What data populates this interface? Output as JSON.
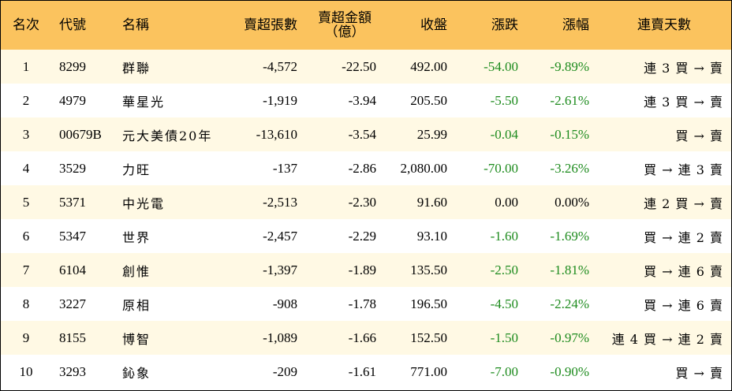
{
  "colors": {
    "header_bg": "#fbc35e",
    "row_alt_bg": "#fff9e4",
    "negative": "#1f8c1f"
  },
  "header": {
    "rank": "名次",
    "code": "代號",
    "name": "名稱",
    "sell_lots": "賣超張數",
    "sell_amount_line1": "賣超金額",
    "sell_amount_line2": "（億）",
    "close": "收盤",
    "change": "漲跌",
    "change_pct": "漲幅",
    "streak": "連賣天數"
  },
  "rows": [
    {
      "rank": "1",
      "code": "8299",
      "name": "群聯",
      "sell_lots": "-4,572",
      "sell_amount": "-22.50",
      "close": "492.00",
      "change": "-54.00",
      "change_pct": "-9.89%",
      "streak": "連 3 買 → 賣"
    },
    {
      "rank": "2",
      "code": "4979",
      "name": "華星光",
      "sell_lots": "-1,919",
      "sell_amount": "-3.94",
      "close": "205.50",
      "change": "-5.50",
      "change_pct": "-2.61%",
      "streak": "連 3 買 → 賣"
    },
    {
      "rank": "3",
      "code": "00679B",
      "name": "元大美債20年",
      "sell_lots": "-13,610",
      "sell_amount": "-3.54",
      "close": "25.99",
      "change": "-0.04",
      "change_pct": "-0.15%",
      "streak": "買 → 賣"
    },
    {
      "rank": "4",
      "code": "3529",
      "name": "力旺",
      "sell_lots": "-137",
      "sell_amount": "-2.86",
      "close": "2,080.00",
      "change": "-70.00",
      "change_pct": "-3.26%",
      "streak": "買 → 連 3 賣"
    },
    {
      "rank": "5",
      "code": "5371",
      "name": "中光電",
      "sell_lots": "-2,513",
      "sell_amount": "-2.30",
      "close": "91.60",
      "change": "0.00",
      "change_pct": "0.00%",
      "streak": "連 2 買 → 賣"
    },
    {
      "rank": "6",
      "code": "5347",
      "name": "世界",
      "sell_lots": "-2,457",
      "sell_amount": "-2.29",
      "close": "93.10",
      "change": "-1.60",
      "change_pct": "-1.69%",
      "streak": "買 → 連 2 賣"
    },
    {
      "rank": "7",
      "code": "6104",
      "name": "創惟",
      "sell_lots": "-1,397",
      "sell_amount": "-1.89",
      "close": "135.50",
      "change": "-2.50",
      "change_pct": "-1.81%",
      "streak": "買 → 連 6 賣"
    },
    {
      "rank": "8",
      "code": "3227",
      "name": "原相",
      "sell_lots": "-908",
      "sell_amount": "-1.78",
      "close": "196.50",
      "change": "-4.50",
      "change_pct": "-2.24%",
      "streak": "買 → 連 6 賣"
    },
    {
      "rank": "9",
      "code": "8155",
      "name": "博智",
      "sell_lots": "-1,089",
      "sell_amount": "-1.66",
      "close": "152.50",
      "change": "-1.50",
      "change_pct": "-0.97%",
      "streak": "連 4 買 → 連 2 賣"
    },
    {
      "rank": "10",
      "code": "3293",
      "name": "鈊象",
      "sell_lots": "-209",
      "sell_amount": "-1.61",
      "close": "771.00",
      "change": "-7.00",
      "change_pct": "-0.90%",
      "streak": "買 → 賣"
    }
  ]
}
